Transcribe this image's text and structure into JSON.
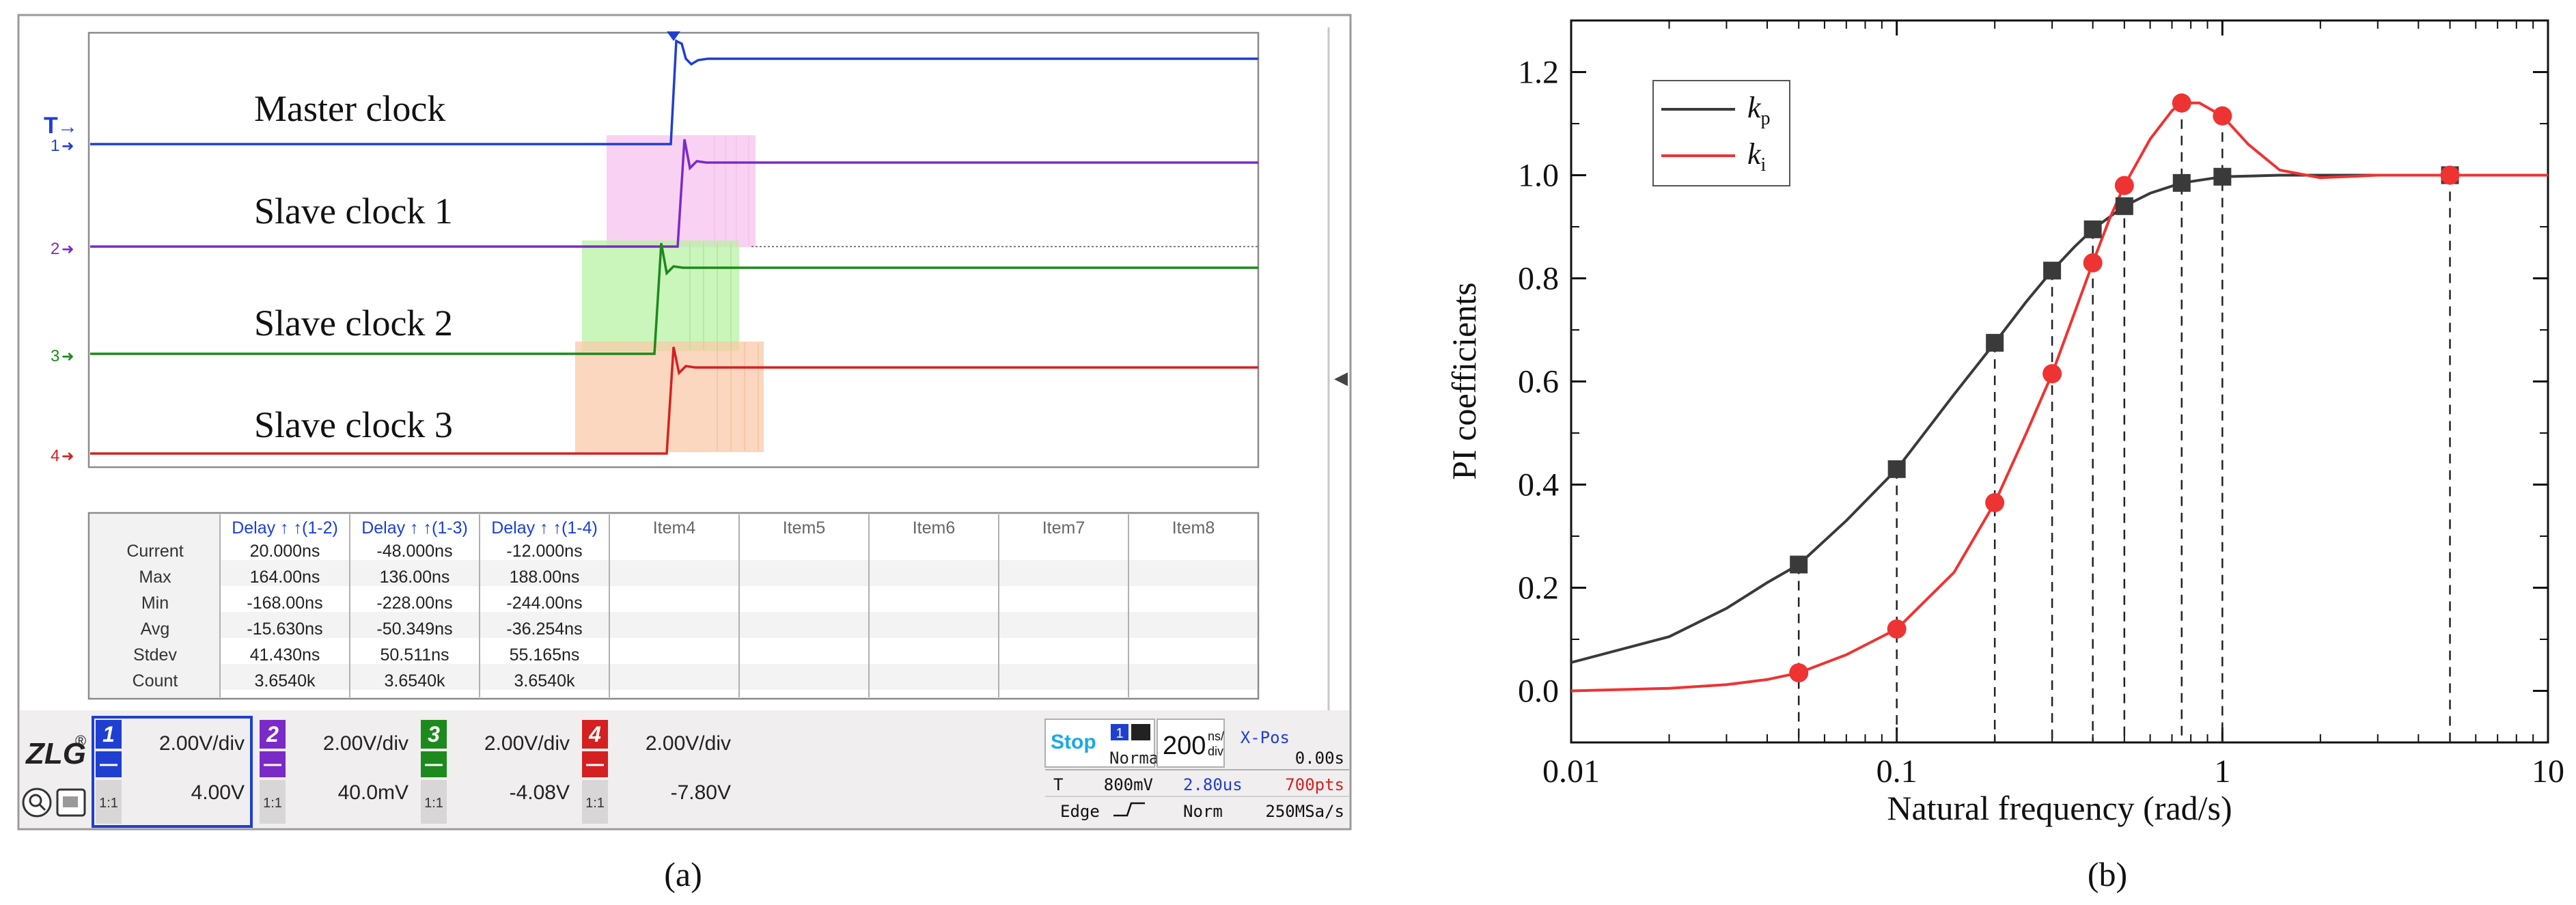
{
  "panel_a": {
    "caption": "(a)",
    "trigger_marker": "T",
    "channel_markers": [
      "1",
      "2",
      "3",
      "4"
    ],
    "trace_labels": [
      "Master clock",
      "Slave clock 1",
      "Slave clock 2",
      "Slave clock 3"
    ],
    "table": {
      "row_labels": [
        "Current",
        "Max",
        "Min",
        "Avg",
        "Stdev",
        "Count"
      ],
      "headers": [
        "Delay ↑ ↑(1-2)",
        "Delay ↑ ↑(1-3)",
        "Delay ↑ ↑(1-4)",
        "Item4",
        "Item5",
        "Item6",
        "Item7",
        "Item8"
      ],
      "columns": [
        [
          "20.000ns",
          "164.00ns",
          "-168.00ns",
          "-15.630ns",
          "41.430ns",
          "3.6540k"
        ],
        [
          "-48.000ns",
          "136.00ns",
          "-228.00ns",
          "-50.349ns",
          "50.511ns",
          "3.6540k"
        ],
        [
          "-12.000ns",
          "188.00ns",
          "-244.00ns",
          "-36.254ns",
          "55.165ns",
          "3.6540k"
        ]
      ]
    },
    "bottom_bar": {
      "logo": "ZLG",
      "logo_mark": "®",
      "channels": [
        {
          "num": "1",
          "scale": "2.00V/div",
          "offset": "4.00V",
          "coupling": "1:1"
        },
        {
          "num": "2",
          "scale": "2.00V/div",
          "offset": "40.0mV",
          "coupling": "1:1"
        },
        {
          "num": "3",
          "scale": "2.00V/div",
          "offset": "-4.08V",
          "coupling": "1:1"
        },
        {
          "num": "4",
          "scale": "2.00V/div",
          "offset": "-7.80V",
          "coupling": "1:1"
        }
      ],
      "run_state": "Stop",
      "trig_channel": "1",
      "trig_mode": "Normal",
      "timebase_value": "200",
      "timebase_unit_top": "ns/",
      "timebase_unit_bottom": "div",
      "xpos_label": "X-Pos",
      "xpos_value": "0.00s",
      "trig_type": "T",
      "trig_level": "800mV",
      "trig_edge": "Edge",
      "delay_value": "2.80us",
      "points": "700pts",
      "acq_mode": "Norm",
      "sample_rate": "250MSa/s"
    },
    "colors": {
      "ch1": "#1f3fd0",
      "ch2": "#7a2bc7",
      "ch3": "#1c8a1c",
      "ch4": "#d42020",
      "header_text": "#1a3fd8"
    }
  },
  "chart_data": {
    "type": "line",
    "caption": "(b)",
    "title": "",
    "xlabel": "Natural frequency (rad/s)",
    "ylabel": "PI coefficients",
    "xscale": "log",
    "xlim": [
      0.01,
      10
    ],
    "ylim": [
      -0.1,
      1.3
    ],
    "x_ticks": [
      0.01,
      0.1,
      1,
      10
    ],
    "x_tick_labels": [
      "0.01",
      "0.1",
      "1",
      "10"
    ],
    "y_ticks": [
      0.0,
      0.2,
      0.4,
      0.6,
      0.8,
      1.0,
      1.2
    ],
    "y_tick_labels": [
      "0.0",
      "0.2",
      "0.4",
      "0.6",
      "0.8",
      "1.0",
      "1.2"
    ],
    "legend_position": "top-left",
    "series": [
      {
        "name": "k",
        "subscript": "p",
        "color": "#3a3a3a",
        "marker": "square",
        "curve_x": [
          0.01,
          0.02,
          0.03,
          0.04,
          0.05,
          0.07,
          0.1,
          0.15,
          0.2,
          0.25,
          0.3,
          0.35,
          0.4,
          0.5,
          0.6,
          0.75,
          1.0,
          1.5,
          2,
          3,
          5,
          10
        ],
        "curve_y": [
          0.055,
          0.105,
          0.16,
          0.21,
          0.245,
          0.33,
          0.43,
          0.575,
          0.675,
          0.755,
          0.815,
          0.86,
          0.895,
          0.94,
          0.965,
          0.985,
          0.997,
          1.0,
          1.0,
          1.0,
          1.0,
          1.0
        ],
        "points_x": [
          0.05,
          0.1,
          0.2,
          0.3,
          0.4,
          0.5,
          0.75,
          1.0,
          5.0
        ],
        "points_y": [
          0.245,
          0.43,
          0.675,
          0.815,
          0.895,
          0.94,
          0.985,
          0.997,
          1.0
        ]
      },
      {
        "name": "k",
        "subscript": "i",
        "color": "#ee3333",
        "marker": "circle",
        "curve_x": [
          0.01,
          0.02,
          0.03,
          0.04,
          0.05,
          0.07,
          0.1,
          0.15,
          0.2,
          0.25,
          0.3,
          0.35,
          0.4,
          0.45,
          0.5,
          0.6,
          0.7,
          0.75,
          0.85,
          1.0,
          1.2,
          1.5,
          2,
          3,
          5,
          10
        ],
        "curve_y": [
          0.0,
          0.005,
          0.012,
          0.022,
          0.035,
          0.07,
          0.12,
          0.23,
          0.365,
          0.5,
          0.615,
          0.73,
          0.83,
          0.915,
          0.98,
          1.07,
          1.125,
          1.14,
          1.14,
          1.115,
          1.06,
          1.01,
          0.995,
          1.0,
          1.0,
          1.0
        ],
        "points_x": [
          0.05,
          0.1,
          0.2,
          0.3,
          0.4,
          0.5,
          0.75,
          1.0,
          5.0
        ],
        "points_y": [
          0.035,
          0.12,
          0.365,
          0.615,
          0.83,
          0.98,
          1.14,
          1.115,
          1.0
        ]
      }
    ]
  }
}
